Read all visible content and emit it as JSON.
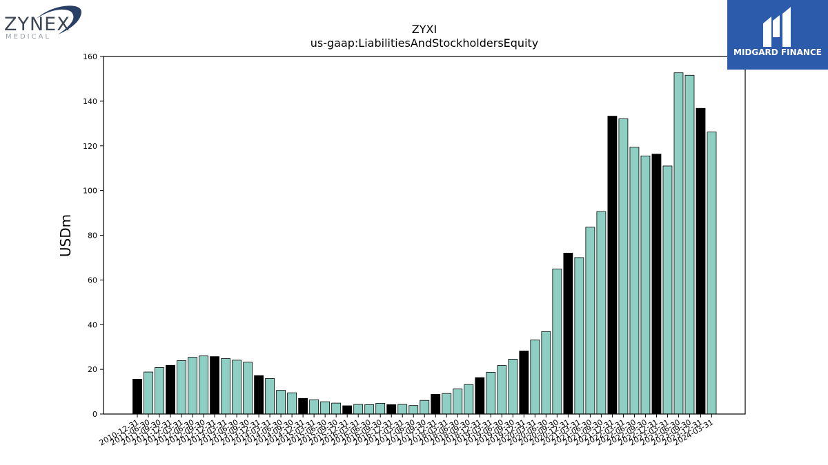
{
  "logos": {
    "left": {
      "brand": "ZYNEX",
      "sub": "MEDICAL"
    },
    "right": {
      "text": "MIDGARD FINANCE"
    }
  },
  "colors": {
    "bar_default": "#8ecfc3",
    "bar_highlight": "#000000",
    "edge": "#000000",
    "logo_right_bg": "#2c5bab",
    "logo_left_swoosh": "#2a3f66"
  },
  "chart_data": {
    "type": "bar",
    "title": "ZYXI",
    "subtitle": "us-gaap:LiabilitiesAndStockholdersEquity",
    "xlabel": "",
    "ylabel": "USDm",
    "ylim": [
      0,
      160
    ],
    "yticks": [
      0,
      20,
      40,
      60,
      80,
      100,
      120,
      140,
      160
    ],
    "grid": false,
    "categories": [
      "2010-12-31",
      "2011-06-30",
      "2011-09-30",
      "2011-12-31",
      "2012-03-31",
      "2012-06-30",
      "2012-09-30",
      "2012-12-31",
      "2013-03-31",
      "2013-06-30",
      "2013-09-30",
      "2013-12-31",
      "2014-03-31",
      "2014-06-30",
      "2014-09-30",
      "2014-12-31",
      "2015-03-31",
      "2015-06-30",
      "2015-09-30",
      "2015-12-31",
      "2016-03-31",
      "2016-06-30",
      "2016-09-30",
      "2016-12-31",
      "2017-03-31",
      "2017-06-30",
      "2017-09-30",
      "2017-12-31",
      "2018-03-31",
      "2018-06-30",
      "2018-09-30",
      "2018-12-31",
      "2019-03-31",
      "2019-06-30",
      "2019-09-30",
      "2019-12-31",
      "2020-03-31",
      "2020-06-30",
      "2020-09-30",
      "2020-12-31",
      "2021-03-31",
      "2021-06-30",
      "2021-09-30",
      "2021-12-31",
      "2022-03-31",
      "2022-06-30",
      "2022-09-30",
      "2022-12-31",
      "2023-03-31",
      "2023-06-30",
      "2023-09-30",
      "2023-12-31",
      "2024-03-31"
    ],
    "values": [
      15.6,
      18.8,
      20.8,
      21.8,
      23.9,
      25.4,
      26.0,
      25.7,
      24.8,
      24.1,
      23.2,
      17.2,
      15.9,
      10.6,
      9.5,
      7.0,
      6.4,
      5.5,
      4.9,
      3.7,
      4.3,
      4.2,
      4.8,
      4.2,
      4.3,
      3.8,
      6.1,
      8.8,
      9.2,
      11.2,
      13.2,
      16.3,
      18.7,
      21.7,
      24.5,
      28.2,
      33.2,
      36.9,
      64.9,
      72.0,
      70.0,
      83.6,
      90.6,
      133.3,
      132.1,
      119.4,
      115.5,
      116.3,
      111.0,
      152.7,
      151.6,
      136.8,
      126.2
    ],
    "highlight": [
      true,
      false,
      false,
      true,
      false,
      false,
      false,
      true,
      false,
      false,
      false,
      true,
      false,
      false,
      false,
      true,
      false,
      false,
      false,
      true,
      false,
      false,
      false,
      true,
      false,
      false,
      false,
      true,
      false,
      false,
      false,
      true,
      false,
      false,
      false,
      true,
      false,
      false,
      false,
      true,
      false,
      false,
      false,
      true,
      false,
      false,
      false,
      true,
      false,
      false,
      false,
      true,
      false
    ]
  }
}
